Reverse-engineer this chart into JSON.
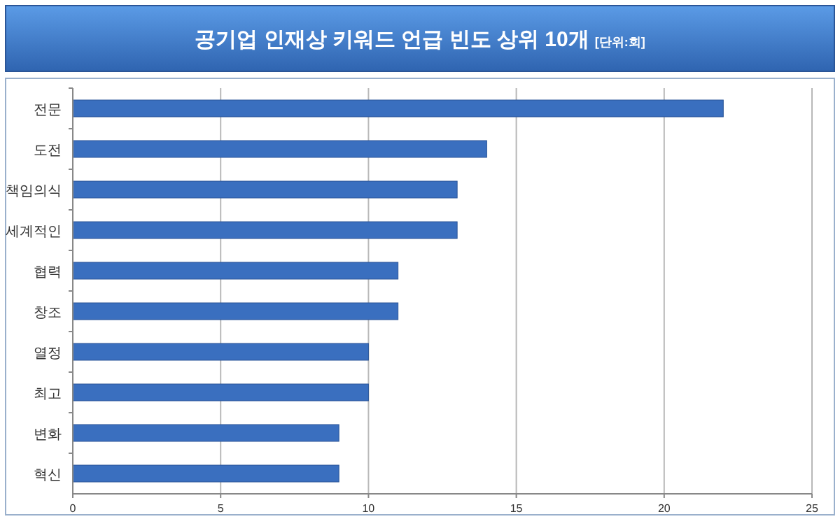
{
  "chart_data": {
    "type": "bar",
    "orientation": "horizontal",
    "title": "공기업 인재상 키워드 언급 빈도 상위 10개",
    "subtitle": "[단위:회]",
    "categories": [
      "전문",
      "도전",
      "책임의식",
      "세계적인",
      "협력",
      "창조",
      "열정",
      "최고",
      "변화",
      "혁신"
    ],
    "values": [
      22,
      14,
      13,
      13,
      11,
      11,
      10,
      10,
      9,
      9
    ],
    "color": "#3a6fbf",
    "xlim": [
      0,
      25
    ],
    "xticks": [
      0,
      5,
      10,
      15,
      20,
      25
    ],
    "grid": "x"
  }
}
